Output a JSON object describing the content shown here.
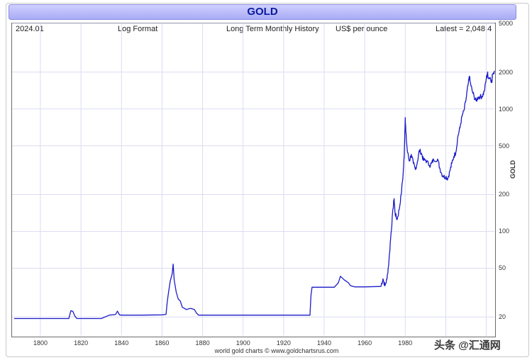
{
  "window": {
    "title": "GOLD"
  },
  "header": {
    "date": "2024.01",
    "format": "Log Format",
    "history": "Long Term Monthly History",
    "unit": "US$ per ounce",
    "latest": "Latest = 2,048.4"
  },
  "footer": {
    "credit": "world gold charts © www.goldchartsrus.com",
    "watermark": "头条 @汇通网"
  },
  "colors": {
    "line": "#1b1bc8",
    "grid": "#dcdcf2",
    "title_bg": "#b9bbfa"
  },
  "chart_data": {
    "type": "line",
    "title": "GOLD",
    "ylabel": "GOLD",
    "yscale": "log",
    "ylim": [
      14,
      5000
    ],
    "xlim": [
      1786,
      2024
    ],
    "y_ticks": [
      20,
      50,
      100,
      200,
      500,
      1000,
      2000,
      5000
    ],
    "x_ticks": [
      1800,
      1820,
      1840,
      1860,
      1880,
      1900,
      1920,
      1940,
      1960,
      1980,
      2000,
      2020
    ],
    "x_tick_labels": [
      "1800",
      "1820",
      "1840",
      "1860",
      "1880",
      "1900",
      "1920",
      "1940",
      "1960",
      "1980",
      "",
      ""
    ],
    "grid": true,
    "series": [
      {
        "x": [
          1787,
          1814,
          1815,
          1816,
          1817,
          1818,
          1830,
          1834,
          1837,
          1838,
          1839,
          1840,
          1850,
          1860,
          1862,
          1862.5,
          1863,
          1864,
          1865,
          1865.5,
          1866,
          1867,
          1868,
          1869,
          1870,
          1871,
          1872,
          1874,
          1876,
          1877,
          1878,
          1879,
          1880,
          1900,
          1920,
          1933,
          1933.5,
          1934,
          1940,
          1945,
          1947,
          1948,
          1950,
          1951,
          1952,
          1953,
          1955,
          1960,
          1968,
          1969,
          1970,
          1971,
          1972,
          1973,
          1974,
          1974.5,
          1975,
          1976,
          1977,
          1978,
          1979,
          1979.5,
          1980,
          1980.3,
          1981,
          1982,
          1983,
          1984,
          1985,
          1986,
          1987,
          1988,
          1989,
          1990,
          1992,
          1993,
          1994,
          1996,
          1997,
          1998,
          1999,
          2000,
          2001,
          2002,
          2003,
          2004,
          2005,
          2006,
          2007,
          2008,
          2009,
          2010,
          2011,
          2011.7,
          2012,
          2013,
          2014,
          2015,
          2016,
          2017,
          2018,
          2019,
          2020,
          2020.6,
          2021,
          2022,
          2022.8,
          2023,
          2024
        ],
        "values": [
          19.4,
          19.4,
          22.5,
          22.2,
          20.3,
          19.4,
          19.4,
          20.7,
          20.9,
          22.3,
          20.8,
          20.7,
          20.7,
          20.8,
          21.0,
          26.0,
          30.0,
          39.0,
          45.0,
          54.0,
          40.0,
          32.0,
          28.0,
          27.0,
          24.0,
          23.5,
          23.0,
          23.5,
          23.0,
          21.5,
          20.7,
          20.7,
          20.7,
          20.7,
          20.7,
          20.7,
          30.0,
          35.0,
          35.0,
          35.0,
          38.0,
          43.0,
          40.0,
          39.0,
          38.0,
          36.0,
          35.2,
          35.2,
          35.5,
          41.0,
          35.9,
          40.8,
          58.2,
          97.0,
          154.0,
          185.0,
          140.0,
          125.0,
          150.0,
          200.0,
          300.0,
          420.0,
          850.0,
          650.0,
          460.0,
          375.0,
          425.0,
          360.0,
          320.0,
          370.0,
          460.0,
          435.0,
          380.0,
          385.0,
          345.0,
          360.0,
          385.0,
          390.0,
          330.0,
          295.0,
          280.0,
          280.0,
          270.0,
          310.0,
          360.0,
          410.0,
          445.0,
          600.0,
          700.0,
          870.0,
          970.0,
          1200.0,
          1570.0,
          1850.0,
          1670.0,
          1410.0,
          1260.0,
          1160.0,
          1250.0,
          1260.0,
          1270.0,
          1390.0,
          1780.0,
          1970.0,
          1800.0,
          1800.0,
          1650.0,
          1930.0,
          2048.4
        ]
      }
    ]
  }
}
